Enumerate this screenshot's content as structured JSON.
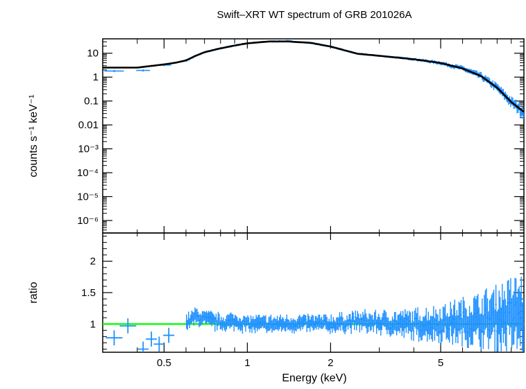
{
  "chart_data": [
    {
      "type": "scatter",
      "title": "Swift–XRT WT spectrum of GRB 201026A",
      "ylabel": "counts s⁻¹ keV⁻¹",
      "xlabel": "",
      "x_scale": "log",
      "y_scale": "log",
      "xlim": [
        0.3,
        10
      ],
      "ylim": [
        3e-07,
        40
      ],
      "y_ticks": [
        {
          "value": 10,
          "label": "10"
        },
        {
          "value": 1,
          "label": "1"
        },
        {
          "value": 0.1,
          "label": "0.1"
        },
        {
          "value": 0.01,
          "label": "0.01"
        },
        {
          "value": 0.001,
          "label": "10⁻³"
        },
        {
          "value": 0.0001,
          "label": "10⁻⁴"
        },
        {
          "value": 1e-05,
          "label": "10⁻⁵"
        },
        {
          "value": 1e-06,
          "label": "10⁻⁶"
        }
      ],
      "colors": {
        "data": "#1e90ff",
        "model": "#000000"
      },
      "series": [
        {
          "kind": "data",
          "x": [
            0.33,
            0.42,
            0.5,
            0.55,
            0.6,
            0.65,
            0.7,
            0.8,
            0.9,
            1.0,
            1.2,
            1.4,
            1.7,
            2.0,
            2.5,
            3.0,
            4.0,
            5.0,
            6.0,
            7.0,
            8.0,
            9.0,
            10.0
          ],
          "values": [
            1.8,
            1.9,
            3.2,
            3.8,
            4.8,
            7.5,
            11,
            16,
            21,
            26,
            31,
            32,
            27,
            19,
            9.5,
            7.8,
            5.6,
            3.9,
            2.3,
            1.1,
            0.36,
            0.09,
            0.035
          ]
        },
        {
          "kind": "model",
          "x": [
            0.3,
            0.4,
            0.5,
            0.55,
            0.6,
            0.65,
            0.7,
            0.8,
            0.9,
            1.0,
            1.2,
            1.4,
            1.7,
            2.0,
            2.5,
            3.0,
            4.0,
            5.0,
            6.0,
            7.0,
            8.0,
            9.0,
            10.0
          ],
          "values": [
            2.5,
            2.5,
            3.4,
            4.0,
            5.0,
            7.8,
            11,
            16,
            21,
            26,
            31,
            31,
            27,
            19,
            9.5,
            7.8,
            5.6,
            3.9,
            2.3,
            1.1,
            0.36,
            0.09,
            0.035
          ]
        }
      ]
    },
    {
      "type": "scatter",
      "title": "",
      "ylabel": "ratio",
      "xlabel": "Energy (keV)",
      "x_scale": "log",
      "y_scale": "linear",
      "xlim": [
        0.3,
        10
      ],
      "ylim": [
        0.55,
        2.45
      ],
      "x_ticks": [
        {
          "value": 0.5,
          "label": "0.5"
        },
        {
          "value": 1,
          "label": "1"
        },
        {
          "value": 2,
          "label": "2"
        },
        {
          "value": 5,
          "label": "5"
        }
      ],
      "y_ticks": [
        {
          "value": 1,
          "label": "1"
        },
        {
          "value": 1.5,
          "label": "1.5"
        },
        {
          "value": 2,
          "label": "2"
        }
      ],
      "reference_line": 1,
      "colors": {
        "data": "#1e90ff",
        "reference": "#00ff00"
      },
      "series": [
        {
          "kind": "data",
          "x": [
            0.33,
            0.37,
            0.42,
            0.45,
            0.48,
            0.52,
            0.6,
            0.65,
            0.7,
            0.8,
            0.9,
            1.0,
            1.2,
            1.5,
            2.0,
            2.5,
            3.0,
            4.0,
            5.0,
            6.0,
            7.0,
            8.0,
            9.0
          ],
          "values": [
            0.78,
            0.97,
            0.6,
            0.76,
            0.68,
            0.82,
            1.02,
            1.3,
            1.2,
            1.05,
            1.1,
            1.0,
            0.98,
            1.02,
            1.0,
            1.1,
            1.05,
            0.97,
            1.02,
            1.08,
            1.15,
            1.25,
            1.35
          ]
        }
      ]
    }
  ]
}
